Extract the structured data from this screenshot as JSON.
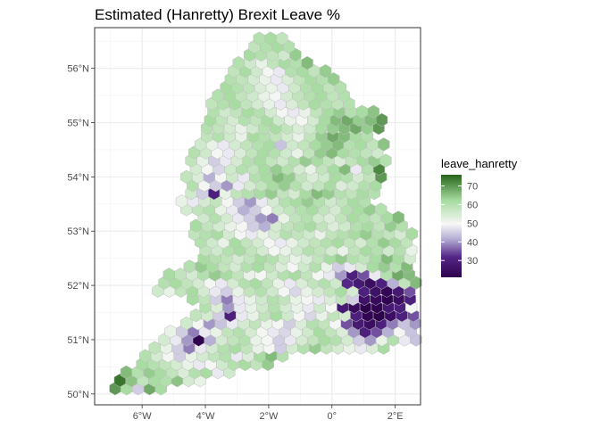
{
  "chart_data": {
    "type": "heatmap",
    "title": "Estimated (Hanretty) Brexit Leave %",
    "xlabel": "",
    "ylabel": "",
    "x_ticks": [
      {
        "value": -6,
        "label": "6°W"
      },
      {
        "value": -4,
        "label": "4°W"
      },
      {
        "value": -2,
        "label": "2°W"
      },
      {
        "value": 0,
        "label": "0°"
      },
      {
        "value": 2,
        "label": "2°E"
      }
    ],
    "y_ticks": [
      {
        "value": 50,
        "label": "50°N"
      },
      {
        "value": 51,
        "label": "51°N"
      },
      {
        "value": 52,
        "label": "52°N"
      },
      {
        "value": 53,
        "label": "53°N"
      },
      {
        "value": 54,
        "label": "54°N"
      },
      {
        "value": 55,
        "label": "55°N"
      },
      {
        "value": 56,
        "label": "56°N"
      }
    ],
    "xlim": [
      -7.5,
      2.8
    ],
    "ylim": [
      49.8,
      56.75
    ],
    "grid": true,
    "legend": {
      "title": "leave_hanretty",
      "position": "right",
      "ticks": [
        30,
        40,
        50,
        60,
        70
      ],
      "range": [
        21,
        76
      ],
      "colors": {
        "low": "#2d004b",
        "mid": "#f7f7f7",
        "high": "#276419"
      }
    },
    "hex_size_deg": 0.185,
    "rows": [
      {
        "lat": 50.1,
        "x0": -6.85,
        "values": [
          70,
          62,
          45,
          68,
          62
        ]
      },
      {
        "lat": 50.25,
        "x0": -6.7,
        "values": [
          74,
          65,
          58,
          62,
          60,
          65,
          55,
          52
        ]
      },
      {
        "lat": 50.4,
        "x0": -6.5,
        "values": [
          66,
          60,
          64,
          62,
          58,
          54,
          60,
          62,
          48,
          56
        ]
      },
      {
        "lat": 50.55,
        "x0": -6.0,
        "values": [
          62,
          60,
          58,
          55,
          52,
          48,
          50,
          56,
          60,
          62,
          58,
          64
        ]
      },
      {
        "lat": 50.7,
        "x0": -5.9,
        "values": [
          60,
          55,
          50,
          45,
          52,
          55,
          58,
          60,
          48,
          54,
          62,
          66,
          60
        ]
      },
      {
        "lat": 50.85,
        "x0": -5.6,
        "values": [
          58,
          52,
          45,
          38,
          48,
          55,
          60,
          62,
          58,
          52,
          50,
          45,
          55,
          60,
          64,
          58,
          55,
          52,
          48,
          54,
          62
        ]
      },
      {
        "lat": 51.0,
        "x0": -5.3,
        "values": [
          55,
          48,
          40,
          22,
          42,
          55,
          58,
          60,
          52,
          50,
          45,
          48,
          55,
          58,
          62,
          60,
          55,
          45,
          40,
          52,
          60,
          48,
          44,
          58,
          60,
          62
        ]
      },
      {
        "lat": 51.15,
        "x0": -5.1,
        "values": [
          52,
          45,
          38,
          48,
          52,
          58,
          60,
          55,
          50,
          48,
          46,
          52,
          56,
          62,
          58,
          54,
          40,
          30,
          35,
          42,
          50,
          44,
          38,
          52,
          60,
          64,
          60,
          58,
          62
        ]
      },
      {
        "lat": 51.3,
        "x0": -4.6,
        "values": [
          56,
          50,
          40,
          44,
          48,
          55,
          58,
          52,
          50,
          45,
          54,
          60,
          58,
          50,
          35,
          28,
          25,
          30,
          38,
          44,
          40,
          48,
          55,
          62,
          66,
          64,
          58,
          60
        ]
      },
      {
        "lat": 51.45,
        "x0": -4.3,
        "values": [
          58,
          55,
          45,
          30,
          48,
          52,
          58,
          62,
          56,
          50,
          46,
          52,
          58,
          55,
          30,
          22,
          20,
          25,
          30,
          35,
          45,
          58,
          62,
          60,
          55,
          62,
          66
        ]
      },
      {
        "lat": 51.6,
        "x0": -4.0,
        "values": [
          60,
          54,
          40,
          48,
          52,
          56,
          60,
          55,
          52,
          48,
          56,
          50,
          28,
          24,
          21,
          22,
          28,
          30,
          50,
          60,
          64,
          62,
          58,
          60,
          66
        ]
      },
      {
        "lat": 51.75,
        "x0": -4.4,
        "values": [
          62,
          58,
          45,
          38,
          48,
          52,
          56,
          60,
          58,
          52,
          50,
          48,
          54,
          58,
          45,
          26,
          24,
          22,
          25,
          30,
          48,
          62,
          66,
          70,
          64,
          60,
          62
        ]
      },
      {
        "lat": 51.9,
        "x0": -5.5,
        "values": [
          56,
          52,
          58,
          62,
          55,
          48,
          45,
          52,
          58,
          60,
          56,
          50,
          46,
          52,
          55,
          58,
          62,
          55,
          30,
          26,
          23,
          28,
          35,
          55,
          64,
          68,
          70,
          66,
          60
        ]
      },
      {
        "lat": 52.05,
        "x0": -5.3,
        "values": [
          60,
          62,
          58,
          55,
          50,
          48,
          55,
          60,
          62,
          58,
          52,
          48,
          54,
          58,
          60,
          56,
          32,
          28,
          25,
          30,
          42,
          58,
          66,
          70,
          68,
          60
        ]
      },
      {
        "lat": 52.2,
        "x0": -5.15,
        "values": [
          62,
          58,
          55,
          60,
          64,
          62,
          58,
          52,
          50,
          56,
          60,
          62,
          58,
          50,
          48,
          40,
          30,
          35,
          48,
          60,
          68,
          66,
          62,
          56
        ]
      },
      {
        "lat": 52.35,
        "x0": -4.5,
        "values": [
          60,
          64,
          62,
          58,
          55,
          60,
          62,
          58,
          54,
          50,
          56,
          60,
          52,
          45,
          48,
          55,
          62,
          64,
          60,
          66,
          64
        ]
      },
      {
        "lat": 52.5,
        "x0": -4.05,
        "values": [
          62,
          60,
          58,
          55,
          58,
          62,
          60,
          56,
          52,
          54,
          58,
          62,
          64,
          60,
          58,
          62,
          66,
          62,
          55,
          46
        ]
      },
      {
        "lat": 52.65,
        "x0": -4.0,
        "values": [
          58,
          56,
          60,
          62,
          58,
          55,
          50,
          52,
          56,
          60,
          58,
          55,
          52,
          58,
          62,
          60,
          56,
          60,
          52
        ]
      },
      {
        "lat": 52.8,
        "x0": -4.15,
        "values": [
          60,
          56,
          52,
          62,
          58,
          55,
          50,
          48,
          52,
          56,
          58,
          60,
          62,
          58,
          55,
          60,
          64,
          62,
          58,
          56
        ]
      },
      {
        "lat": 52.95,
        "x0": -4.35,
        "values": [
          58,
          60,
          62,
          55,
          50,
          48,
          52,
          55,
          60,
          58,
          56,
          52,
          58,
          60,
          62,
          64,
          60,
          58,
          55,
          62
        ]
      },
      {
        "lat": 53.1,
        "x0": -4.3,
        "values": [
          62,
          58,
          55,
          52,
          50,
          45,
          42,
          55,
          58,
          60,
          62,
          58,
          54,
          56,
          60,
          62,
          58,
          64,
          60
        ]
      },
      {
        "lat": 53.25,
        "x0": -4.05,
        "values": [
          56,
          60,
          55,
          48,
          45,
          40,
          38,
          52,
          58,
          60,
          56,
          54,
          58,
          62,
          60,
          58,
          62,
          66
        ]
      },
      {
        "lat": 53.4,
        "x0": -4.6,
        "values": [
          55,
          58,
          60,
          52,
          48,
          42,
          45,
          50,
          56,
          58,
          60,
          62,
          58,
          55,
          60,
          62,
          64,
          60
        ]
      },
      {
        "lat": 53.55,
        "x0": -4.75,
        "values": [
          52,
          48,
          55,
          58,
          50,
          45,
          40,
          48,
          55,
          60,
          62,
          64,
          60,
          56,
          58,
          62,
          60
        ]
      },
      {
        "lat": 53.7,
        "x0": -4.45,
        "values": [
          56,
          45,
          30,
          52,
          58,
          60,
          62,
          64,
          58,
          55,
          62,
          66,
          64,
          60,
          58,
          62,
          60
        ]
      },
      {
        "lat": 53.85,
        "x0": -4.4,
        "values": [
          60,
          50,
          45,
          40,
          48,
          55,
          58,
          62,
          64,
          60,
          56,
          58,
          62,
          54,
          56,
          60,
          62
        ]
      },
      {
        "lat": 54.0,
        "x0": -4.6,
        "values": [
          58,
          54,
          42,
          50,
          56,
          48,
          60,
          62,
          66,
          64,
          58,
          54,
          56,
          62,
          60,
          55,
          58,
          70
        ]
      },
      {
        "lat": 54.15,
        "x0": -4.3,
        "values": [
          55,
          50,
          46,
          56,
          60,
          58,
          62,
          64,
          60,
          55,
          52,
          58,
          62,
          66,
          48,
          60,
          72
        ]
      },
      {
        "lat": 54.3,
        "x0": -4.45,
        "values": [
          58,
          52,
          45,
          48,
          55,
          60,
          62,
          58,
          56,
          60,
          64,
          62,
          58,
          54,
          58,
          62,
          64,
          60
        ]
      },
      {
        "lat": 54.45,
        "x0": -4.35,
        "values": [
          60,
          56,
          50,
          48,
          54,
          58,
          62,
          60,
          56,
          52,
          58,
          64,
          66,
          62,
          60,
          58,
          56
        ]
      },
      {
        "lat": 54.6,
        "x0": -4.15,
        "values": [
          56,
          52,
          48,
          55,
          58,
          60,
          62,
          44,
          56,
          58,
          62,
          64,
          66,
          60,
          62,
          58,
          65
        ]
      },
      {
        "lat": 54.75,
        "x0": -3.95,
        "values": [
          58,
          60,
          56,
          52,
          62,
          60,
          58,
          55,
          52,
          58,
          64,
          68,
          66,
          62,
          60
        ]
      },
      {
        "lat": 54.9,
        "x0": -3.95,
        "values": [
          60,
          58,
          55,
          52,
          56,
          60,
          62,
          58,
          54,
          56,
          62,
          64,
          66,
          68,
          64,
          70
        ]
      },
      {
        "lat": 55.05,
        "x0": -3.85,
        "values": [
          62,
          58,
          55,
          60,
          58,
          62,
          56,
          52,
          50,
          55,
          62,
          66,
          68,
          64,
          66,
          70
        ]
      },
      {
        "lat": 55.2,
        "x0": -3.75,
        "values": [
          60,
          56,
          58,
          62,
          60,
          55,
          50,
          48,
          52,
          58,
          62,
          64,
          60,
          62,
          65
        ]
      },
      {
        "lat": 55.35,
        "x0": -3.8,
        "values": [
          58,
          60,
          62,
          58,
          55,
          52,
          48,
          54,
          58,
          62,
          60,
          58,
          60
        ]
      },
      {
        "lat": 55.5,
        "x0": -3.6,
        "values": [
          60,
          62,
          58,
          56,
          52,
          50,
          55,
          58,
          60,
          62,
          58,
          60
        ]
      },
      {
        "lat": 55.65,
        "x0": -3.35,
        "values": [
          62,
          60,
          58,
          54,
          52,
          48,
          56,
          60,
          62,
          58,
          60
        ]
      },
      {
        "lat": 55.8,
        "x0": -3.2,
        "values": [
          60,
          58,
          55,
          52,
          48,
          54,
          58,
          62,
          60,
          64
        ]
      },
      {
        "lat": 55.95,
        "x0": -3.1,
        "values": [
          58,
          62,
          56,
          50,
          48,
          60,
          62,
          58,
          64
        ]
      },
      {
        "lat": 56.1,
        "x0": -2.95,
        "values": [
          60,
          56,
          52,
          58,
          62,
          60,
          66
        ]
      },
      {
        "lat": 56.25,
        "x0": -2.6,
        "values": [
          62,
          60,
          58,
          56,
          64
        ]
      },
      {
        "lat": 56.4,
        "x0": -2.45,
        "values": [
          58,
          60,
          62,
          60
        ]
      },
      {
        "lat": 56.55,
        "x0": -2.3,
        "values": [
          60,
          62,
          58
        ]
      }
    ]
  }
}
